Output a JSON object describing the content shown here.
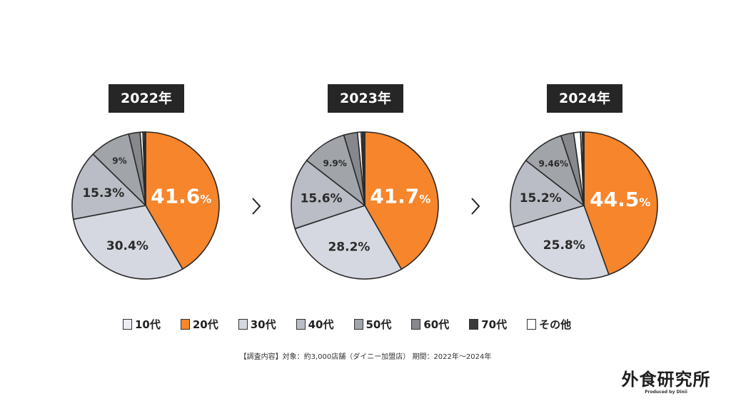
{
  "categories": [
    "10代",
    "20代",
    "30代",
    "40代",
    "50代",
    "60代",
    "70代",
    "その他"
  ],
  "colors": {
    "10代": "#eceef4",
    "20代": "#f7852b",
    "30代": "#d5d8e0",
    "40代": "#babdc5",
    "50代": "#a1a4a9",
    "60代": "#86888c",
    "70代": "#3a3a3a",
    "その他": "#ffffff"
  },
  "chart_data": [
    {
      "type": "pie",
      "title": "2022年",
      "slice_order": [
        "20代",
        "30代",
        "40代",
        "50代",
        "60代",
        "その他",
        "10代",
        "70代"
      ],
      "values": {
        "20代": 41.6,
        "30代": 30.4,
        "40代": 15.3,
        "50代": 9,
        "60代": 2.5,
        "その他": 0.6,
        "10代": 0.3,
        "70代": 0.3
      },
      "labels": {
        "20代": "41.6",
        "30代": "30.4%",
        "40代": "15.3%",
        "50代": "9%"
      }
    },
    {
      "type": "pie",
      "title": "2023年",
      "slice_order": [
        "20代",
        "30代",
        "40代",
        "50代",
        "60代",
        "その他",
        "10代",
        "70代"
      ],
      "values": {
        "20代": 41.7,
        "30代": 28.2,
        "40代": 15.6,
        "50代": 9.9,
        "60代": 3.0,
        "その他": 0.8,
        "10代": 0.3,
        "70代": 0.5
      },
      "labels": {
        "20代": "41.7",
        "30代": "28.2%",
        "40代": "15.6%",
        "50代": "9.9%"
      }
    },
    {
      "type": "pie",
      "title": "2024年",
      "slice_order": [
        "20代",
        "30代",
        "40代",
        "50代",
        "60代",
        "その他",
        "10代",
        "70代"
      ],
      "values": {
        "20代": 44.5,
        "30代": 25.8,
        "40代": 15.2,
        "50代": 9.46,
        "60代": 2.8,
        "その他": 1.5,
        "10代": 0.4,
        "70代": 0.34
      },
      "labels": {
        "20代": "44.5",
        "30代": "25.8%",
        "40代": "15.2%",
        "50代": "9.46%"
      }
    }
  ],
  "percent_sign": "%",
  "note": "【調査内容】対象：約3,000店舗（ダイニー加盟店） 期間：2022年～2024年",
  "logo": {
    "title": "外食研究所",
    "subtitle": "Produced by Dinii"
  }
}
